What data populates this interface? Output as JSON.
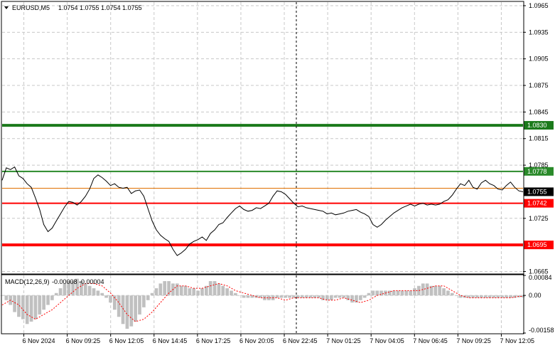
{
  "header": {
    "arrow_icon": "triangle-down-icon",
    "symbol": "EURUSD,M5",
    "ohlc": "1.0754 1.0755 1.0754 1.0755"
  },
  "macd": {
    "label": "MACD(12,26,9)",
    "values": "-0.00008 -0.00004"
  },
  "colors": {
    "background": "#ffffff",
    "grid": "#c8c8c8",
    "price_line": "#000000",
    "dark_green": "#1b7a1b",
    "green": "#2a8a2a",
    "red": "#ff0000",
    "orange": "#e07000",
    "histogram": "#c0c0c0",
    "signal": "#ff0000"
  },
  "chart_data": {
    "type": "line",
    "title": "EURUSD,M5",
    "x_tick_labels": [
      "6 Nov 2024",
      "6 Nov 09:25",
      "6 Nov 12:05",
      "6 Nov 14:45",
      "6 Nov 17:25",
      "6 Nov 20:05",
      "6 Nov 22:45",
      "7 Nov 01:25",
      "7 Nov 04:05",
      "7 Nov 06:45",
      "7 Nov 09:25",
      "7 Nov 12:05"
    ],
    "y_tick_labels": [
      "1.0965",
      "1.0935",
      "1.0905",
      "1.0875",
      "1.0845",
      "1.0815",
      "1.0785",
      "1.0725",
      "1.0665"
    ],
    "ylim": [
      1.0663,
      1.0969
    ],
    "grid": true,
    "price_series": [
      [
        0,
        1.0768
      ],
      [
        3,
        1.0782
      ],
      [
        6,
        1.078
      ],
      [
        9,
        1.0783
      ],
      [
        12,
        1.0773
      ],
      [
        15,
        1.077
      ],
      [
        18,
        1.0764
      ],
      [
        21,
        1.076
      ],
      [
        24,
        1.0748
      ],
      [
        27,
        1.0735
      ],
      [
        30,
        1.0718
      ],
      [
        33,
        1.071
      ],
      [
        36,
        1.0714
      ],
      [
        39,
        1.0722
      ],
      [
        42,
        1.073
      ],
      [
        45,
        1.0738
      ],
      [
        48,
        1.0744
      ],
      [
        51,
        1.0743
      ],
      [
        54,
        1.074
      ],
      [
        57,
        1.0744
      ],
      [
        60,
        1.075
      ],
      [
        63,
        1.0758
      ],
      [
        66,
        1.077
      ],
      [
        69,
        1.0774
      ],
      [
        72,
        1.0771
      ],
      [
        75,
        1.0767
      ],
      [
        78,
        1.0762
      ],
      [
        81,
        1.0764
      ],
      [
        84,
        1.076
      ],
      [
        87,
        1.0759
      ],
      [
        90,
        1.076
      ],
      [
        93,
        1.0753
      ],
      [
        96,
        1.0756
      ],
      [
        99,
        1.0757
      ],
      [
        102,
        1.075
      ],
      [
        105,
        1.0736
      ],
      [
        108,
        1.0722
      ],
      [
        111,
        1.0712
      ],
      [
        114,
        1.0706
      ],
      [
        117,
        1.0702
      ],
      [
        120,
        1.0699
      ],
      [
        123,
        1.069
      ],
      [
        126,
        1.0683
      ],
      [
        129,
        1.0686
      ],
      [
        132,
        1.069
      ],
      [
        135,
        1.0696
      ],
      [
        138,
        1.0699
      ],
      [
        141,
        1.0701
      ],
      [
        144,
        1.0704
      ],
      [
        147,
        1.07
      ],
      [
        150,
        1.0708
      ],
      [
        153,
        1.0712
      ],
      [
        156,
        1.0718
      ],
      [
        159,
        1.072
      ],
      [
        162,
        1.0726
      ],
      [
        165,
        1.0731
      ],
      [
        168,
        1.0736
      ],
      [
        171,
        1.0739
      ],
      [
        174,
        1.0735
      ],
      [
        177,
        1.0733
      ],
      [
        180,
        1.0734
      ],
      [
        183,
        1.0737
      ],
      [
        186,
        1.0736
      ],
      [
        189,
        1.0739
      ],
      [
        192,
        1.0742
      ],
      [
        195,
        1.075
      ],
      [
        198,
        1.0756
      ],
      [
        201,
        1.0755
      ],
      [
        204,
        1.0752
      ],
      [
        207,
        1.0747
      ],
      [
        210,
        1.0742
      ],
      [
        213,
        1.0738
      ],
      [
        216,
        1.0739
      ],
      [
        219,
        1.0737
      ],
      [
        222,
        1.0736
      ],
      [
        225,
        1.0735
      ],
      [
        228,
        1.0734
      ],
      [
        231,
        1.0733
      ],
      [
        234,
        1.073
      ],
      [
        237,
        1.0731
      ],
      [
        240,
        1.0729
      ],
      [
        243,
        1.073
      ],
      [
        246,
        1.0731
      ],
      [
        249,
        1.0733
      ],
      [
        252,
        1.0734
      ],
      [
        255,
        1.0735
      ],
      [
        258,
        1.0732
      ],
      [
        261,
        1.073
      ],
      [
        264,
        1.0727
      ],
      [
        267,
        1.0718
      ],
      [
        270,
        1.0715
      ],
      [
        273,
        1.0718
      ],
      [
        276,
        1.0723
      ],
      [
        279,
        1.0727
      ],
      [
        282,
        1.0731
      ],
      [
        285,
        1.0734
      ],
      [
        288,
        1.0737
      ],
      [
        291,
        1.0739
      ],
      [
        294,
        1.0741
      ],
      [
        297,
        1.0739
      ],
      [
        300,
        1.0741
      ],
      [
        303,
        1.0742
      ],
      [
        306,
        1.074
      ],
      [
        309,
        1.0741
      ],
      [
        312,
        1.074
      ],
      [
        315,
        1.0741
      ],
      [
        318,
        1.0744
      ],
      [
        321,
        1.0746
      ],
      [
        324,
        1.0751
      ],
      [
        327,
        1.0758
      ],
      [
        330,
        1.0764
      ],
      [
        333,
        1.0762
      ],
      [
        336,
        1.0768
      ],
      [
        339,
        1.076
      ],
      [
        342,
        1.0758
      ],
      [
        345,
        1.0765
      ],
      [
        348,
        1.0768
      ],
      [
        351,
        1.0764
      ],
      [
        354,
        1.0762
      ],
      [
        357,
        1.0758
      ],
      [
        360,
        1.0757
      ],
      [
        363,
        1.0762
      ],
      [
        366,
        1.0766
      ],
      [
        369,
        1.076
      ],
      [
        372,
        1.0756
      ],
      [
        375,
        1.0755
      ]
    ],
    "price_levels": [
      {
        "value": 1.083,
        "label": "1.0830",
        "color": "dark_green",
        "style": "thick"
      },
      {
        "value": 1.0778,
        "label": "1.0778",
        "color": "green",
        "style": "medium"
      },
      {
        "value": 1.0759,
        "label": "",
        "color": "orange",
        "style": "thin"
      },
      {
        "value": 1.0742,
        "label": "1.0742",
        "color": "red",
        "style": "medium"
      },
      {
        "value": 1.0695,
        "label": "1.0695",
        "color": "red",
        "style": "thick"
      }
    ],
    "current_price": {
      "value": 1.0755,
      "label": "1.0755"
    },
    "macd": {
      "ylim": [
        -0.00158,
        0.00084
      ],
      "y_tick_labels": [
        "0.00084",
        "0.00",
        "-0.00158"
      ],
      "histogram": [
        [
          0,
          0.0
        ],
        [
          3,
          -0.0002
        ],
        [
          6,
          -0.0004
        ],
        [
          9,
          -0.0007
        ],
        [
          12,
          -0.0009
        ],
        [
          15,
          -0.001
        ],
        [
          18,
          -0.0012
        ],
        [
          21,
          -0.0011
        ],
        [
          24,
          -0.001
        ],
        [
          27,
          -0.0008
        ],
        [
          30,
          -0.0006
        ],
        [
          33,
          -0.0004
        ],
        [
          36,
          -0.0002
        ],
        [
          39,
          0.0001
        ],
        [
          42,
          0.0003
        ],
        [
          45,
          0.0005
        ],
        [
          48,
          0.0006
        ],
        [
          51,
          0.0006
        ],
        [
          54,
          0.0007
        ],
        [
          57,
          0.0006
        ],
        [
          60,
          0.0005
        ],
        [
          63,
          0.0004
        ],
        [
          66,
          0.0003
        ],
        [
          69,
          0.0002
        ],
        [
          72,
          0.0001
        ],
        [
          75,
          -0.0001
        ],
        [
          78,
          -0.0003
        ],
        [
          81,
          -0.0006
        ],
        [
          84,
          -0.0009
        ],
        [
          87,
          -0.0012
        ],
        [
          90,
          -0.0014
        ],
        [
          93,
          -0.0013
        ],
        [
          96,
          -0.0011
        ],
        [
          99,
          -0.0008
        ],
        [
          102,
          -0.0005
        ],
        [
          105,
          -0.0002
        ],
        [
          108,
          0.0001
        ],
        [
          111,
          0.0003
        ],
        [
          114,
          0.0005
        ],
        [
          117,
          0.0006
        ],
        [
          120,
          0.0006
        ],
        [
          123,
          0.0005
        ],
        [
          126,
          0.0005
        ],
        [
          129,
          0.0004
        ],
        [
          132,
          0.0004
        ],
        [
          135,
          0.0003
        ],
        [
          138,
          0.0003
        ],
        [
          141,
          0.0002
        ],
        [
          144,
          0.0003
        ],
        [
          147,
          0.0004
        ],
        [
          150,
          0.0006
        ],
        [
          153,
          0.0006
        ],
        [
          156,
          0.0005
        ],
        [
          159,
          0.0004
        ],
        [
          162,
          0.0003
        ],
        [
          165,
          0.0002
        ],
        [
          168,
          0.0001
        ],
        [
          171,
          0.0
        ],
        [
          174,
          -0.0001
        ],
        [
          177,
          -0.0001
        ],
        [
          180,
          -0.0001
        ],
        [
          183,
          -0.0001
        ],
        [
          186,
          -0.0001
        ],
        [
          189,
          -0.0002
        ],
        [
          192,
          -0.0002
        ],
        [
          195,
          -0.0002
        ],
        [
          198,
          -0.0001
        ],
        [
          201,
          -0.0001
        ],
        [
          204,
          -0.0001
        ],
        [
          207,
          -0.0001
        ],
        [
          210,
          -0.0001
        ],
        [
          213,
          -0.0001
        ],
        [
          216,
          -0.0001
        ],
        [
          219,
          -0.0001
        ],
        [
          222,
          -0.0001
        ],
        [
          225,
          -0.0001
        ],
        [
          228,
          -0.0001
        ],
        [
          231,
          -0.0002
        ],
        [
          234,
          -0.0002
        ],
        [
          237,
          -0.0002
        ],
        [
          240,
          -0.0001
        ],
        [
          243,
          -0.0001
        ],
        [
          246,
          -0.0001
        ],
        [
          249,
          -0.0002
        ],
        [
          252,
          -0.0003
        ],
        [
          255,
          -0.0003
        ],
        [
          258,
          -0.0002
        ],
        [
          261,
          -0.0001
        ],
        [
          264,
          0.0001
        ],
        [
          267,
          0.0002
        ],
        [
          270,
          0.0002
        ],
        [
          273,
          0.0002
        ],
        [
          276,
          0.0002
        ],
        [
          279,
          0.0002
        ],
        [
          282,
          0.0002
        ],
        [
          285,
          0.0002
        ],
        [
          288,
          0.0002
        ],
        [
          291,
          0.0002
        ],
        [
          294,
          0.0002
        ],
        [
          297,
          0.0003
        ],
        [
          300,
          0.0004
        ],
        [
          303,
          0.0005
        ],
        [
          306,
          0.0005
        ],
        [
          309,
          0.0004
        ],
        [
          312,
          0.0004
        ],
        [
          315,
          0.0004
        ],
        [
          318,
          0.0003
        ],
        [
          321,
          0.0002
        ],
        [
          324,
          0.0001
        ],
        [
          327,
          0.0
        ],
        [
          330,
          -0.0001
        ],
        [
          333,
          -0.0001
        ],
        [
          336,
          -0.0001
        ],
        [
          339,
          -0.0001
        ],
        [
          342,
          -0.0001
        ],
        [
          345,
          -0.0001
        ],
        [
          348,
          -0.0001
        ],
        [
          351,
          -0.0001
        ],
        [
          354,
          -0.0001
        ],
        [
          357,
          -0.0001
        ],
        [
          360,
          -0.0001
        ],
        [
          363,
          -0.0001
        ],
        [
          366,
          -0.0001
        ],
        [
          369,
          -0.0001
        ],
        [
          372,
          -8e-05
        ],
        [
          375,
          -8e-05
        ]
      ],
      "signal": [
        [
          0,
          -0.0004
        ],
        [
          6,
          -0.0002
        ],
        [
          12,
          -0.0004
        ],
        [
          18,
          -0.0008
        ],
        [
          24,
          -0.001
        ],
        [
          30,
          -0.0008
        ],
        [
          36,
          -0.0006
        ],
        [
          42,
          -0.0003
        ],
        [
          48,
          0.0
        ],
        [
          54,
          0.0003
        ],
        [
          60,
          0.0005
        ],
        [
          66,
          0.0005
        ],
        [
          72,
          0.0004
        ],
        [
          78,
          0.0001
        ],
        [
          84,
          -0.0003
        ],
        [
          90,
          -0.0008
        ],
        [
          96,
          -0.0011
        ],
        [
          102,
          -0.001
        ],
        [
          108,
          -0.0007
        ],
        [
          114,
          -0.0003
        ],
        [
          120,
          0.0001
        ],
        [
          126,
          0.0004
        ],
        [
          132,
          0.0004
        ],
        [
          138,
          0.0003
        ],
        [
          144,
          0.0003
        ],
        [
          150,
          0.0004
        ],
        [
          156,
          0.0005
        ],
        [
          162,
          0.0004
        ],
        [
          168,
          0.0002
        ],
        [
          174,
          0.0001
        ],
        [
          180,
          0.0
        ],
        [
          186,
          -0.0001
        ],
        [
          192,
          -0.0001
        ],
        [
          198,
          -0.0001
        ],
        [
          204,
          -0.0002
        ],
        [
          210,
          -0.0001
        ],
        [
          216,
          -0.0001
        ],
        [
          222,
          -0.0001
        ],
        [
          228,
          -0.0001
        ],
        [
          234,
          -0.0002
        ],
        [
          240,
          -0.0002
        ],
        [
          246,
          -0.0001
        ],
        [
          252,
          -0.0002
        ],
        [
          258,
          -0.0003
        ],
        [
          264,
          -0.0002
        ],
        [
          270,
          0.0
        ],
        [
          276,
          0.0001
        ],
        [
          282,
          0.0002
        ],
        [
          288,
          0.0002
        ],
        [
          294,
          0.0002
        ],
        [
          300,
          0.0002
        ],
        [
          306,
          0.0003
        ],
        [
          312,
          0.0004
        ],
        [
          318,
          0.0004
        ],
        [
          324,
          0.0002
        ],
        [
          330,
          0.0
        ],
        [
          336,
          -0.0001
        ],
        [
          342,
          -0.0001
        ],
        [
          348,
          -0.0001
        ],
        [
          354,
          -0.0001
        ],
        [
          360,
          -0.0001
        ],
        [
          366,
          -0.0001
        ],
        [
          372,
          -4e-05
        ],
        [
          375,
          -4e-05
        ]
      ]
    }
  }
}
